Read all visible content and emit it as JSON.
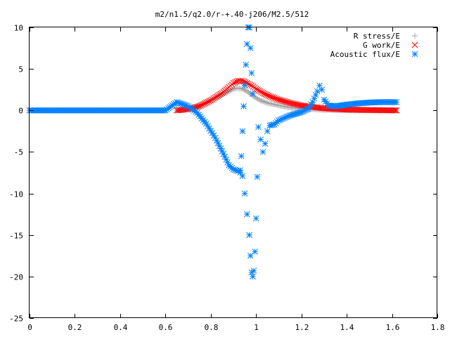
{
  "chart_data": {
    "type": "scatter",
    "title": "m2/n1.5/q2.0/r-+.40-j206/M2.5/512",
    "xlabel": "",
    "ylabel": "",
    "xlim": [
      0,
      1.8
    ],
    "ylim": [
      -25,
      10
    ],
    "x_ticks": [
      "0",
      "0.2",
      "0.4",
      "0.6",
      "0.8",
      "1",
      "1.2",
      "1.4",
      "1.6",
      "1.8"
    ],
    "y_ticks": [
      "10",
      "5",
      "0",
      "-5",
      "-10",
      "-15",
      "-20",
      "-25"
    ],
    "grid": false,
    "legend_position": "top-right",
    "series": [
      {
        "name": "R stress/E",
        "color": "#a0a0a0",
        "marker": "plus",
        "points": [
          [
            0.65,
            0.0
          ],
          [
            0.7,
            0.2
          ],
          [
            0.75,
            0.6
          ],
          [
            0.8,
            1.2
          ],
          [
            0.85,
            1.9
          ],
          [
            0.88,
            2.3
          ],
          [
            0.9,
            2.6
          ],
          [
            0.92,
            2.7
          ],
          [
            0.94,
            2.6
          ],
          [
            0.96,
            2.3
          ],
          [
            0.98,
            1.9
          ],
          [
            1.0,
            1.5
          ],
          [
            1.02,
            1.2
          ],
          [
            1.05,
            0.9
          ],
          [
            1.1,
            0.6
          ],
          [
            1.15,
            0.35
          ],
          [
            1.2,
            0.2
          ],
          [
            1.25,
            0.15
          ],
          [
            1.3,
            0.05
          ],
          [
            1.4,
            0.0
          ],
          [
            1.5,
            0.0
          ],
          [
            1.62,
            0.0
          ]
        ]
      },
      {
        "name": "G work/E",
        "color": "#ff0000",
        "marker": "cross",
        "points": [
          [
            0.65,
            0.0
          ],
          [
            0.7,
            0.15
          ],
          [
            0.75,
            0.5
          ],
          [
            0.8,
            1.2
          ],
          [
            0.85,
            2.1
          ],
          [
            0.88,
            2.8
          ],
          [
            0.9,
            3.3
          ],
          [
            0.92,
            3.55
          ],
          [
            0.94,
            3.55
          ],
          [
            0.96,
            3.3
          ],
          [
            0.98,
            3.0
          ],
          [
            1.0,
            2.6
          ],
          [
            1.03,
            2.1
          ],
          [
            1.06,
            1.7
          ],
          [
            1.1,
            1.3
          ],
          [
            1.15,
            0.9
          ],
          [
            1.2,
            0.6
          ],
          [
            1.25,
            0.4
          ],
          [
            1.3,
            0.25
          ],
          [
            1.4,
            0.1
          ],
          [
            1.5,
            0.05
          ],
          [
            1.62,
            0.0
          ]
        ]
      },
      {
        "name": "Acoustic flux/E",
        "color": "#0080ff",
        "marker": "star",
        "points": [
          [
            0.0,
            0.0
          ],
          [
            0.1,
            0.0
          ],
          [
            0.2,
            0.0
          ],
          [
            0.3,
            0.0
          ],
          [
            0.4,
            0.0
          ],
          [
            0.5,
            0.0
          ],
          [
            0.6,
            0.0
          ],
          [
            0.65,
            1.0
          ],
          [
            0.7,
            0.5
          ],
          [
            0.74,
            -0.3
          ],
          [
            0.78,
            -1.6
          ],
          [
            0.82,
            -3.3
          ],
          [
            0.85,
            -4.9
          ],
          [
            0.88,
            -6.6
          ],
          [
            0.9,
            -7.1
          ],
          [
            0.92,
            -7.3
          ],
          [
            0.93,
            -7.2
          ],
          [
            0.94,
            -7.9
          ],
          [
            0.95,
            -10.0
          ],
          [
            0.96,
            -12.5
          ],
          [
            0.97,
            -15.0
          ],
          [
            0.975,
            -17.5
          ],
          [
            0.98,
            -19.5
          ],
          [
            0.985,
            -20.0
          ],
          [
            0.99,
            -19.3
          ],
          [
            0.995,
            -17.0
          ],
          [
            1.0,
            -13.0
          ],
          [
            1.005,
            -8.0
          ],
          [
            1.01,
            -2.0
          ],
          [
            1.02,
            -3.5
          ],
          [
            1.03,
            -5.0
          ],
          [
            1.04,
            -4.0
          ],
          [
            1.05,
            -2.5
          ],
          [
            1.06,
            -1.8
          ],
          [
            1.08,
            -1.7
          ],
          [
            1.1,
            -1.2
          ],
          [
            1.15,
            -0.6
          ],
          [
            1.2,
            -0.2
          ],
          [
            1.23,
            0.2
          ],
          [
            1.25,
            1.0
          ],
          [
            1.27,
            2.3
          ],
          [
            1.28,
            3.0
          ],
          [
            1.29,
            2.5
          ],
          [
            1.3,
            1.3
          ],
          [
            1.32,
            0.6
          ],
          [
            1.35,
            0.5
          ],
          [
            1.4,
            0.7
          ],
          [
            1.45,
            0.85
          ],
          [
            1.5,
            0.95
          ],
          [
            1.55,
            1.0
          ],
          [
            1.62,
            1.0
          ]
        ],
        "spike_points": [
          [
            0.93,
            -7.5
          ],
          [
            0.935,
            -5.5
          ],
          [
            0.94,
            -2.5
          ],
          [
            0.945,
            0.5
          ],
          [
            0.95,
            3.0
          ],
          [
            0.955,
            5.5
          ],
          [
            0.96,
            8.0
          ],
          [
            0.965,
            10.0
          ],
          [
            0.97,
            10.0
          ],
          [
            0.975,
            7.5
          ],
          [
            0.98,
            4.5
          ],
          [
            0.985,
            2.0
          ]
        ]
      }
    ]
  }
}
